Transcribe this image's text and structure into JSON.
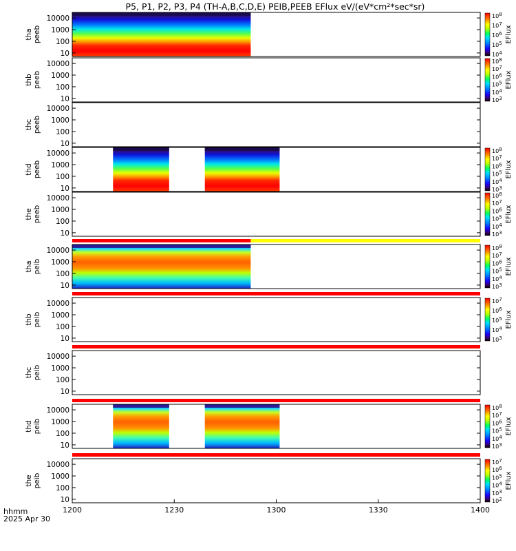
{
  "title": "P5, P1, P2, P3, P4 (TH-A,B,C,D,E) PEIB,PEEB EFlux eV/(eV*cm²*sec*sr)",
  "footer": {
    "axis_label": "hhmm",
    "date": "2025 Apr 30"
  },
  "colors": {
    "red_bar": "#ff0000",
    "yellow_bar": "#ffff00",
    "panel_border": "#000000"
  },
  "chart_data": {
    "type": "heatmap",
    "x_axis": {
      "ticks": [
        "1200",
        "1230",
        "1300",
        "1330",
        "1400"
      ],
      "range_minutes": [
        0,
        120
      ]
    },
    "y_scale": "log",
    "panels": [
      {
        "id": "tha-peeb",
        "line1": "tha",
        "line2": "peeb",
        "species": "electron",
        "yticks": [
          "10",
          "100",
          "1000",
          "10000"
        ],
        "cbar_ticks": [
          "10^4",
          "10^5",
          "10^6",
          "10^7",
          "10^8"
        ],
        "cbar_label": "EFlux",
        "segments": [
          [
            0,
            52.5
          ]
        ],
        "status_bar": null
      },
      {
        "id": "thb-peeb",
        "line1": "thb",
        "line2": "peeb",
        "species": "electron",
        "yticks": [
          "10",
          "100",
          "1000",
          "10000"
        ],
        "cbar_ticks": [
          "10^3",
          "10^4",
          "10^5",
          "10^6",
          "10^7",
          "10^8"
        ],
        "cbar_label": "EFlux",
        "segments": [],
        "status_bar": null
      },
      {
        "id": "thc-peeb",
        "line1": "thc",
        "line2": "peeb",
        "species": "electron",
        "yticks": [
          "10",
          "100",
          "1000",
          "10000"
        ],
        "cbar_ticks": [],
        "cbar_label": "",
        "segments": [],
        "status_bar": null
      },
      {
        "id": "thd-peeb",
        "line1": "thd",
        "line2": "peeb",
        "species": "electron",
        "yticks": [
          "10",
          "100",
          "1000",
          "10000"
        ],
        "cbar_ticks": [
          "10^3",
          "10^4",
          "10^5",
          "10^6",
          "10^7",
          "10^8"
        ],
        "cbar_label": "EFlux",
        "segments": [
          [
            12,
            28.5
          ],
          [
            39,
            61
          ]
        ],
        "status_bar": null
      },
      {
        "id": "the-peeb",
        "line1": "the",
        "line2": "peeb",
        "species": "electron",
        "yticks": [
          "10",
          "100",
          "1000",
          "10000"
        ],
        "cbar_ticks": [
          "10^3",
          "10^4",
          "10^5",
          "10^6",
          "10^7",
          "10^8"
        ],
        "cbar_label": "EFlux",
        "segments": [],
        "status_bar": null
      },
      {
        "id": "tha-peib",
        "line1": "tha",
        "line2": "peib",
        "species": "ion",
        "yticks": [
          "10",
          "100",
          "1000",
          "10000"
        ],
        "cbar_ticks": [
          "10^3",
          "10^4",
          "10^5",
          "10^6",
          "10^7",
          "10^8"
        ],
        "cbar_label": "EFlux",
        "segments": [
          [
            0,
            52.5
          ]
        ],
        "status_bar": {
          "red_until_minute": 52.5,
          "after": "yellow"
        }
      },
      {
        "id": "thb-peib",
        "line1": "thb",
        "line2": "peib",
        "species": "ion",
        "yticks": [
          "10",
          "100",
          "1000",
          "10000"
        ],
        "cbar_ticks": [
          "10^3",
          "10^4",
          "10^5",
          "10^6",
          "10^7"
        ],
        "cbar_label": "EFlux",
        "segments": [],
        "status_bar": {
          "red_until_minute": 120,
          "after": "red"
        }
      },
      {
        "id": "thc-peib",
        "line1": "thc",
        "line2": "peib",
        "species": "ion",
        "yticks": [
          "10",
          "100",
          "1000",
          "10000"
        ],
        "cbar_ticks": [],
        "cbar_label": "",
        "segments": [],
        "status_bar": {
          "red_until_minute": 120,
          "after": "red"
        }
      },
      {
        "id": "thd-peib",
        "line1": "thd",
        "line2": "peib",
        "species": "ion",
        "yticks": [
          "10",
          "100",
          "1000",
          "10000"
        ],
        "cbar_ticks": [
          "10^3",
          "10^4",
          "10^5",
          "10^6",
          "10^7",
          "10^8"
        ],
        "cbar_label": "EFlux",
        "segments": [
          [
            12,
            28.5
          ],
          [
            39,
            61
          ]
        ],
        "status_bar": {
          "red_until_minute": 120,
          "after": "red"
        }
      },
      {
        "id": "the-peib",
        "line1": "the",
        "line2": "peib",
        "species": "ion",
        "yticks": [
          "10",
          "100",
          "1000",
          "10000"
        ],
        "cbar_ticks": [
          "10^2",
          "10^3",
          "10^4",
          "10^5",
          "10^6",
          "10^7"
        ],
        "cbar_label": "EFlux",
        "segments": [],
        "status_bar": {
          "red_until_minute": 120,
          "after": "red"
        }
      }
    ]
  }
}
